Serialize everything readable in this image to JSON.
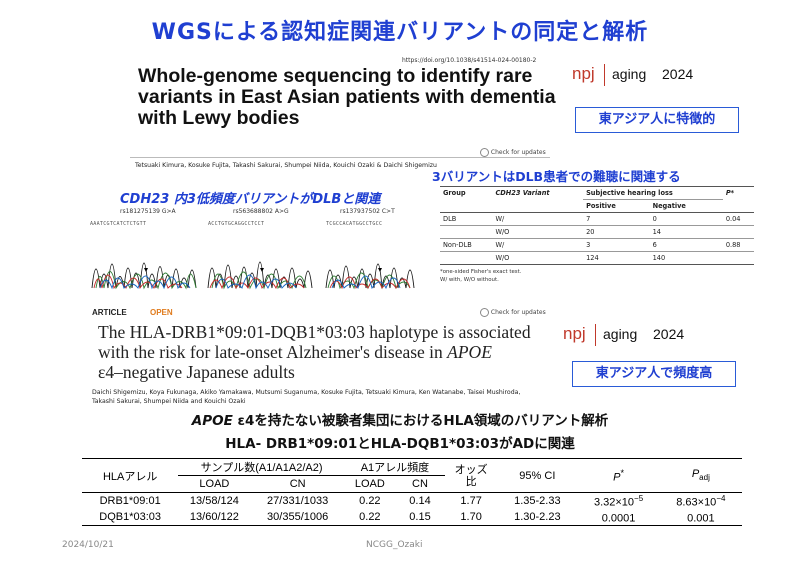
{
  "slide": {
    "title": "WGSによる認知症関連バリアントの同定と解析",
    "footer_date": "2024/10/21",
    "footer_center": "NCGG_Ozaki"
  },
  "paper1": {
    "doi": "https://doi.org/10.1038/s41514-024-00180-2",
    "title": "Whole-genome sequencing to identify rare variants in East Asian patients with dementia with Lewy bodies",
    "journal_brand": "npj",
    "journal_name": "aging",
    "year": "2024",
    "check_updates": "Check for updates",
    "authors": "Tetsuaki Kimura, Kosuke Fujita, Takashi Sakurai, Shumpei Niida, Kouichi Ozaki & Daichi Shigemizu",
    "badge": "東アジア人に特徴的",
    "annotation_variants": "CDH23 内3低頻度バリアントがDLBと関連",
    "annotation_hearing": "3バリアントはDLB患者での難聴に関連する",
    "chromatograms": [
      {
        "rs": "rs181275139 G>A",
        "seq": "AAATCGTCATCTCTGTT"
      },
      {
        "rs": "rs563688802 A>G",
        "seq": "ACCTGTGCAGGCCTCCT"
      },
      {
        "rs": "rs137937502 C>T",
        "seq": "TCGCCACATGGCCTGCC"
      }
    ],
    "hearing_table": {
      "headers": {
        "group": "Group",
        "variant": "CDH23 Variant",
        "subj": "Subjective hearing loss",
        "p": "P*",
        "positive": "Positive",
        "negative": "Negative"
      },
      "rows": [
        {
          "group": "DLB",
          "variant": "W/",
          "positive": "7",
          "negative": "0",
          "p": "0.04"
        },
        {
          "group": "",
          "variant": "W/O",
          "positive": "20",
          "negative": "14",
          "p": ""
        },
        {
          "group": "Non-DLB",
          "variant": "W/",
          "positive": "3",
          "negative": "6",
          "p": "0.88"
        },
        {
          "group": "",
          "variant": "W/O",
          "positive": "124",
          "negative": "140",
          "p": ""
        }
      ],
      "footnote1": "*one-sided Fisher's exact test.",
      "footnote2": "W/ with, W/O without."
    }
  },
  "paper2": {
    "article_label": "ARTICLE",
    "open_label": "OPEN",
    "title": "The HLA-DRB1*09:01-DQB1*03:03 haplotype is associated with the risk for late-onset Alzheimer's disease in APOE ε4–negative Japanese adults",
    "title_line1": "The HLA-DRB1*09:01-DQB1*03:03 haplotype is associated",
    "title_line2a": "with the risk for late-onset Alzheimer's disease in ",
    "title_line2b": "APOE",
    "title_line3": "ε4–negative Japanese adults",
    "journal_brand": "npj",
    "journal_name": "aging",
    "year": "2024",
    "check_updates": "Check for updates",
    "authors": "Daichi Shigemizu, Koya Fukunaga, Akiko Yamakawa, Mutsumi Suganuma, Kosuke Fujita, Tetsuaki Kimura, Ken Watanabe, Taisei Mushiroda, Takashi Sakurai, Shumpei Niida and Kouichi Ozaki",
    "badge": "東アジア人で頻度高",
    "subhead1_italic": "APOE",
    "subhead1_rest": " ε4を持たない被験者集団におけるHLA領域のバリアント解析",
    "subhead2": "HLA- DRB1*09:01とHLA-DQB1*03:03がADに関連"
  },
  "hla_table": {
    "headers": {
      "allele": "HLAアレル",
      "sample": "サンプル数(A1/A1A2/A2)",
      "freq": "A1アレル頻度",
      "or_top": "オッズ",
      "or_bottom": "比",
      "ci": "95% CI",
      "p": "P",
      "p_sup": "*",
      "padj": "P",
      "padj_sub": "adj",
      "load": "LOAD",
      "cn": "CN"
    },
    "rows": [
      {
        "allele": "DRB1*09:01",
        "load": "13/58/124",
        "cn": "27/331/1033",
        "f_load": "0.22",
        "f_cn": "0.14",
        "or": "1.77",
        "ci": "1.35-2.33",
        "p": "3.32×10",
        "p_exp": "−5",
        "padj": "8.63×10",
        "padj_exp": "−4"
      },
      {
        "allele": "DQB1*03:03",
        "load": "13/60/122",
        "cn": "30/355/1006",
        "f_load": "0.22",
        "f_cn": "0.15",
        "or": "1.70",
        "ci": "1.30-2.23",
        "p": "0.0001",
        "p_exp": "",
        "padj": "0.001",
        "padj_exp": ""
      }
    ]
  },
  "colors": {
    "title_blue": "#1f3fd1",
    "npj_red": "#c0392b",
    "open_orange": "#e07b1d"
  }
}
